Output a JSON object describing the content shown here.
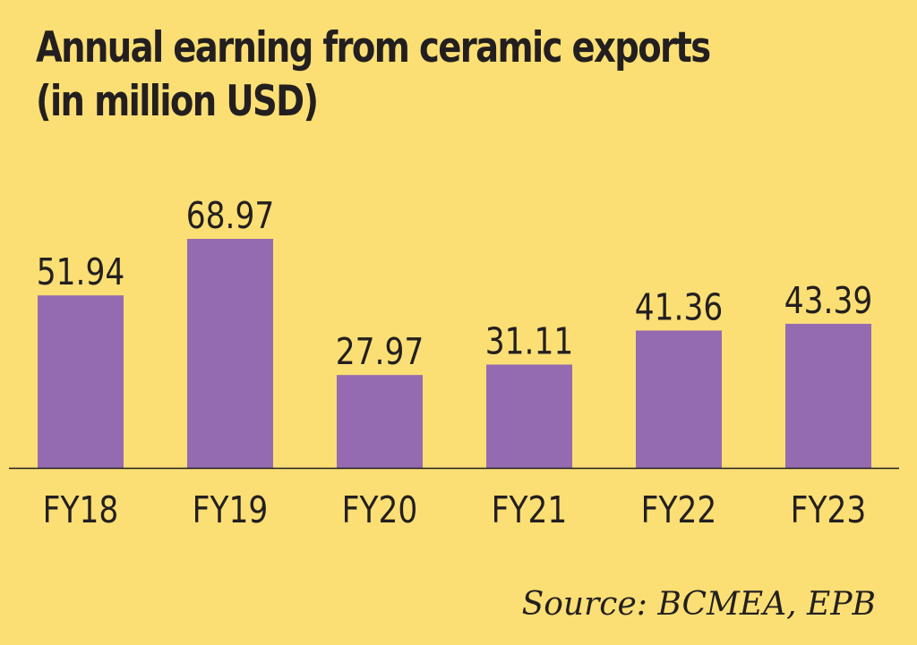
{
  "chart_data": {
    "type": "bar",
    "title": "Annual earning from ceramic exports (in million USD)",
    "title_lines": [
      "Annual earning from ceramic exports",
      "(in million USD)"
    ],
    "categories": [
      "FY18",
      "FY19",
      "FY20",
      "FY21",
      "FY22",
      "FY23"
    ],
    "values": [
      51.94,
      68.97,
      27.97,
      31.11,
      41.36,
      43.39
    ],
    "value_labels": [
      "51.94",
      "68.97",
      "27.97",
      "31.11",
      "41.36",
      "43.39"
    ],
    "xlabel": "",
    "ylabel": "",
    "ylim": [
      0,
      68.97
    ],
    "grid": false,
    "legend": "none",
    "bar_color": "#946bb0",
    "baseline_color": "#231f20",
    "text_color": "#231f20",
    "background": "#fbdf74"
  },
  "source": "Source: BCMEA, EPB"
}
